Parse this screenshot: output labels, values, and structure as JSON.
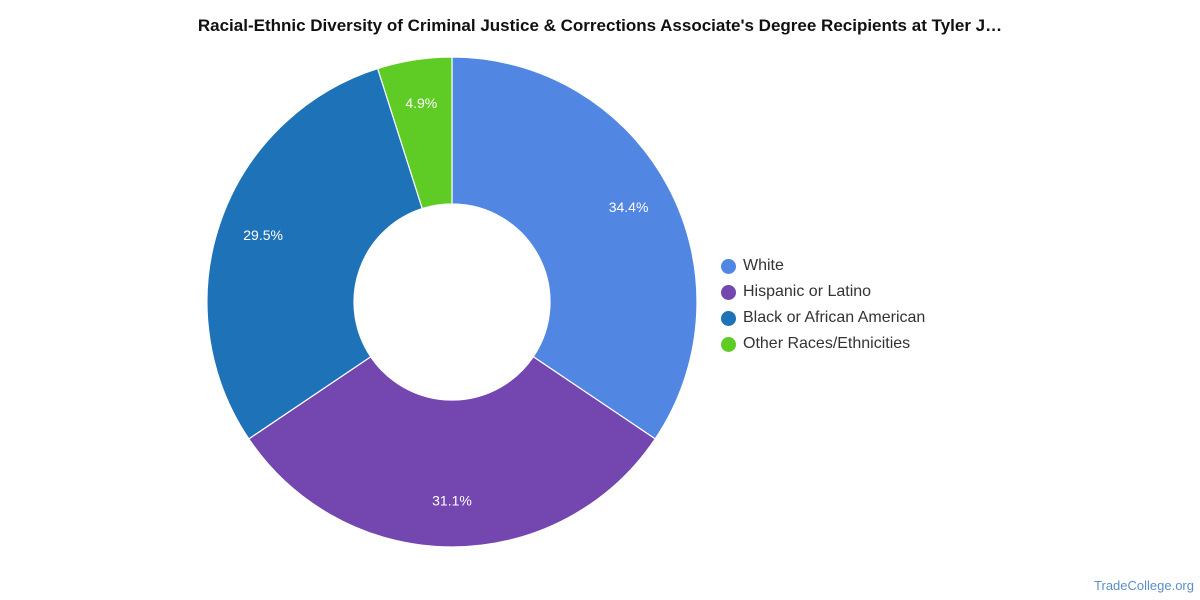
{
  "title": "Racial-Ethnic Diversity of Criminal Justice & Corrections Associate's Degree Recipients at Tyler J…",
  "credit": "TradeCollege.org",
  "chart_data": {
    "type": "pie",
    "donut": true,
    "title": "Racial-Ethnic Diversity of Criminal Justice & Corrections Associate's Degree Recipients at Tyler J…",
    "legend_position": "right",
    "series": [
      {
        "name": "White",
        "value": 34.4,
        "label": "34.4%",
        "color": "#5186e2"
      },
      {
        "name": "Hispanic or Latino",
        "value": 31.1,
        "label": "31.1%",
        "color": "#7446af"
      },
      {
        "name": "Black or African American",
        "value": 29.5,
        "label": "29.5%",
        "color": "#1e72b8"
      },
      {
        "name": "Other Races/Ethnicities",
        "value": 4.9,
        "label": "4.9%",
        "color": "#5fcc25"
      }
    ]
  }
}
